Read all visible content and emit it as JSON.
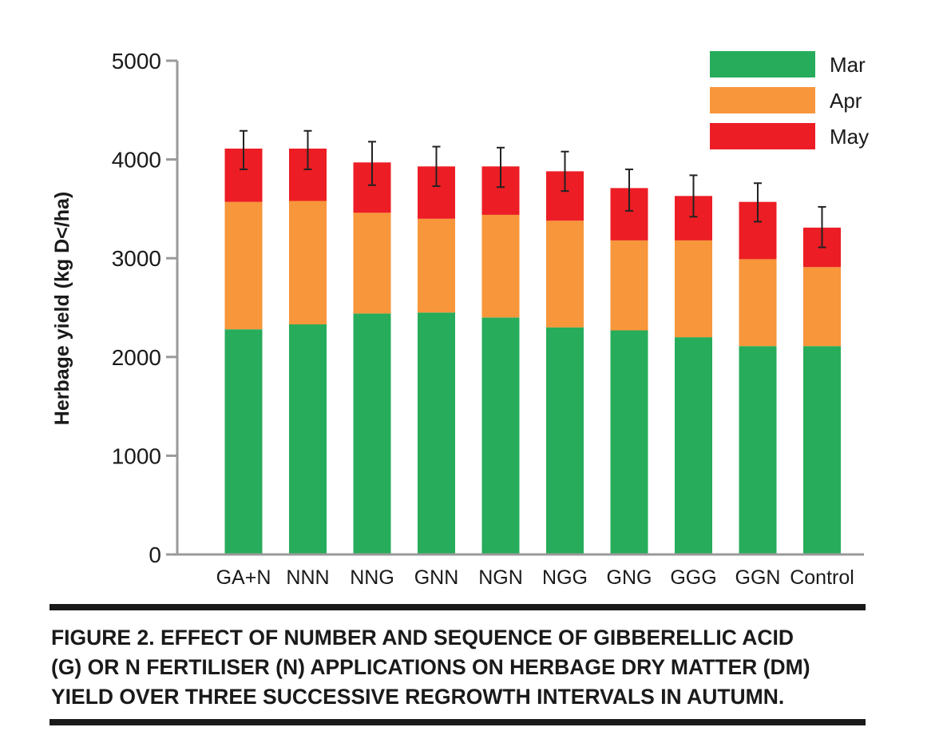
{
  "chart_data": {
    "type": "bar",
    "stacked": true,
    "ylabel": "Herbage yield (kg D</ha)",
    "xlabel": "",
    "ylim": [
      0,
      5000
    ],
    "yticks": [
      0,
      1000,
      2000,
      3000,
      4000,
      5000
    ],
    "grid": false,
    "legend_position": "top-right",
    "categories": [
      "GA+N",
      "NNN",
      "NNG",
      "GNN",
      "NGN",
      "NGG",
      "GNG",
      "GGG",
      "GGN",
      "Control"
    ],
    "series": [
      {
        "name": "Mar",
        "color": "#27ac5b",
        "values": [
          2280,
          2330,
          2440,
          2450,
          2400,
          2300,
          2270,
          2200,
          2110,
          2110
        ]
      },
      {
        "name": "Apr",
        "color": "#f7963a",
        "values": [
          1290,
          1250,
          1020,
          950,
          1040,
          1080,
          910,
          980,
          880,
          800
        ]
      },
      {
        "name": "May",
        "color": "#ec1d24",
        "values": [
          540,
          530,
          510,
          530,
          490,
          500,
          530,
          450,
          580,
          400
        ]
      }
    ],
    "error_bars": {
      "low": [
        3900,
        3900,
        3740,
        3730,
        3720,
        3680,
        3480,
        3420,
        3370,
        3110
      ],
      "high": [
        4290,
        4290,
        4180,
        4130,
        4120,
        4080,
        3900,
        3840,
        3760,
        3520
      ]
    }
  },
  "caption": {
    "line1": "FIGURE 2. EFFECT OF NUMBER AND SEQUENCE OF GIBBERELLIC ACID",
    "line2": "(G) OR N FERTILISER (N) APPLICATIONS ON HERBAGE DRY MATTER (DM)",
    "line3": "YIELD OVER THREE SUCCESSIVE REGROWTH INTERVALS IN AUTUMN."
  }
}
